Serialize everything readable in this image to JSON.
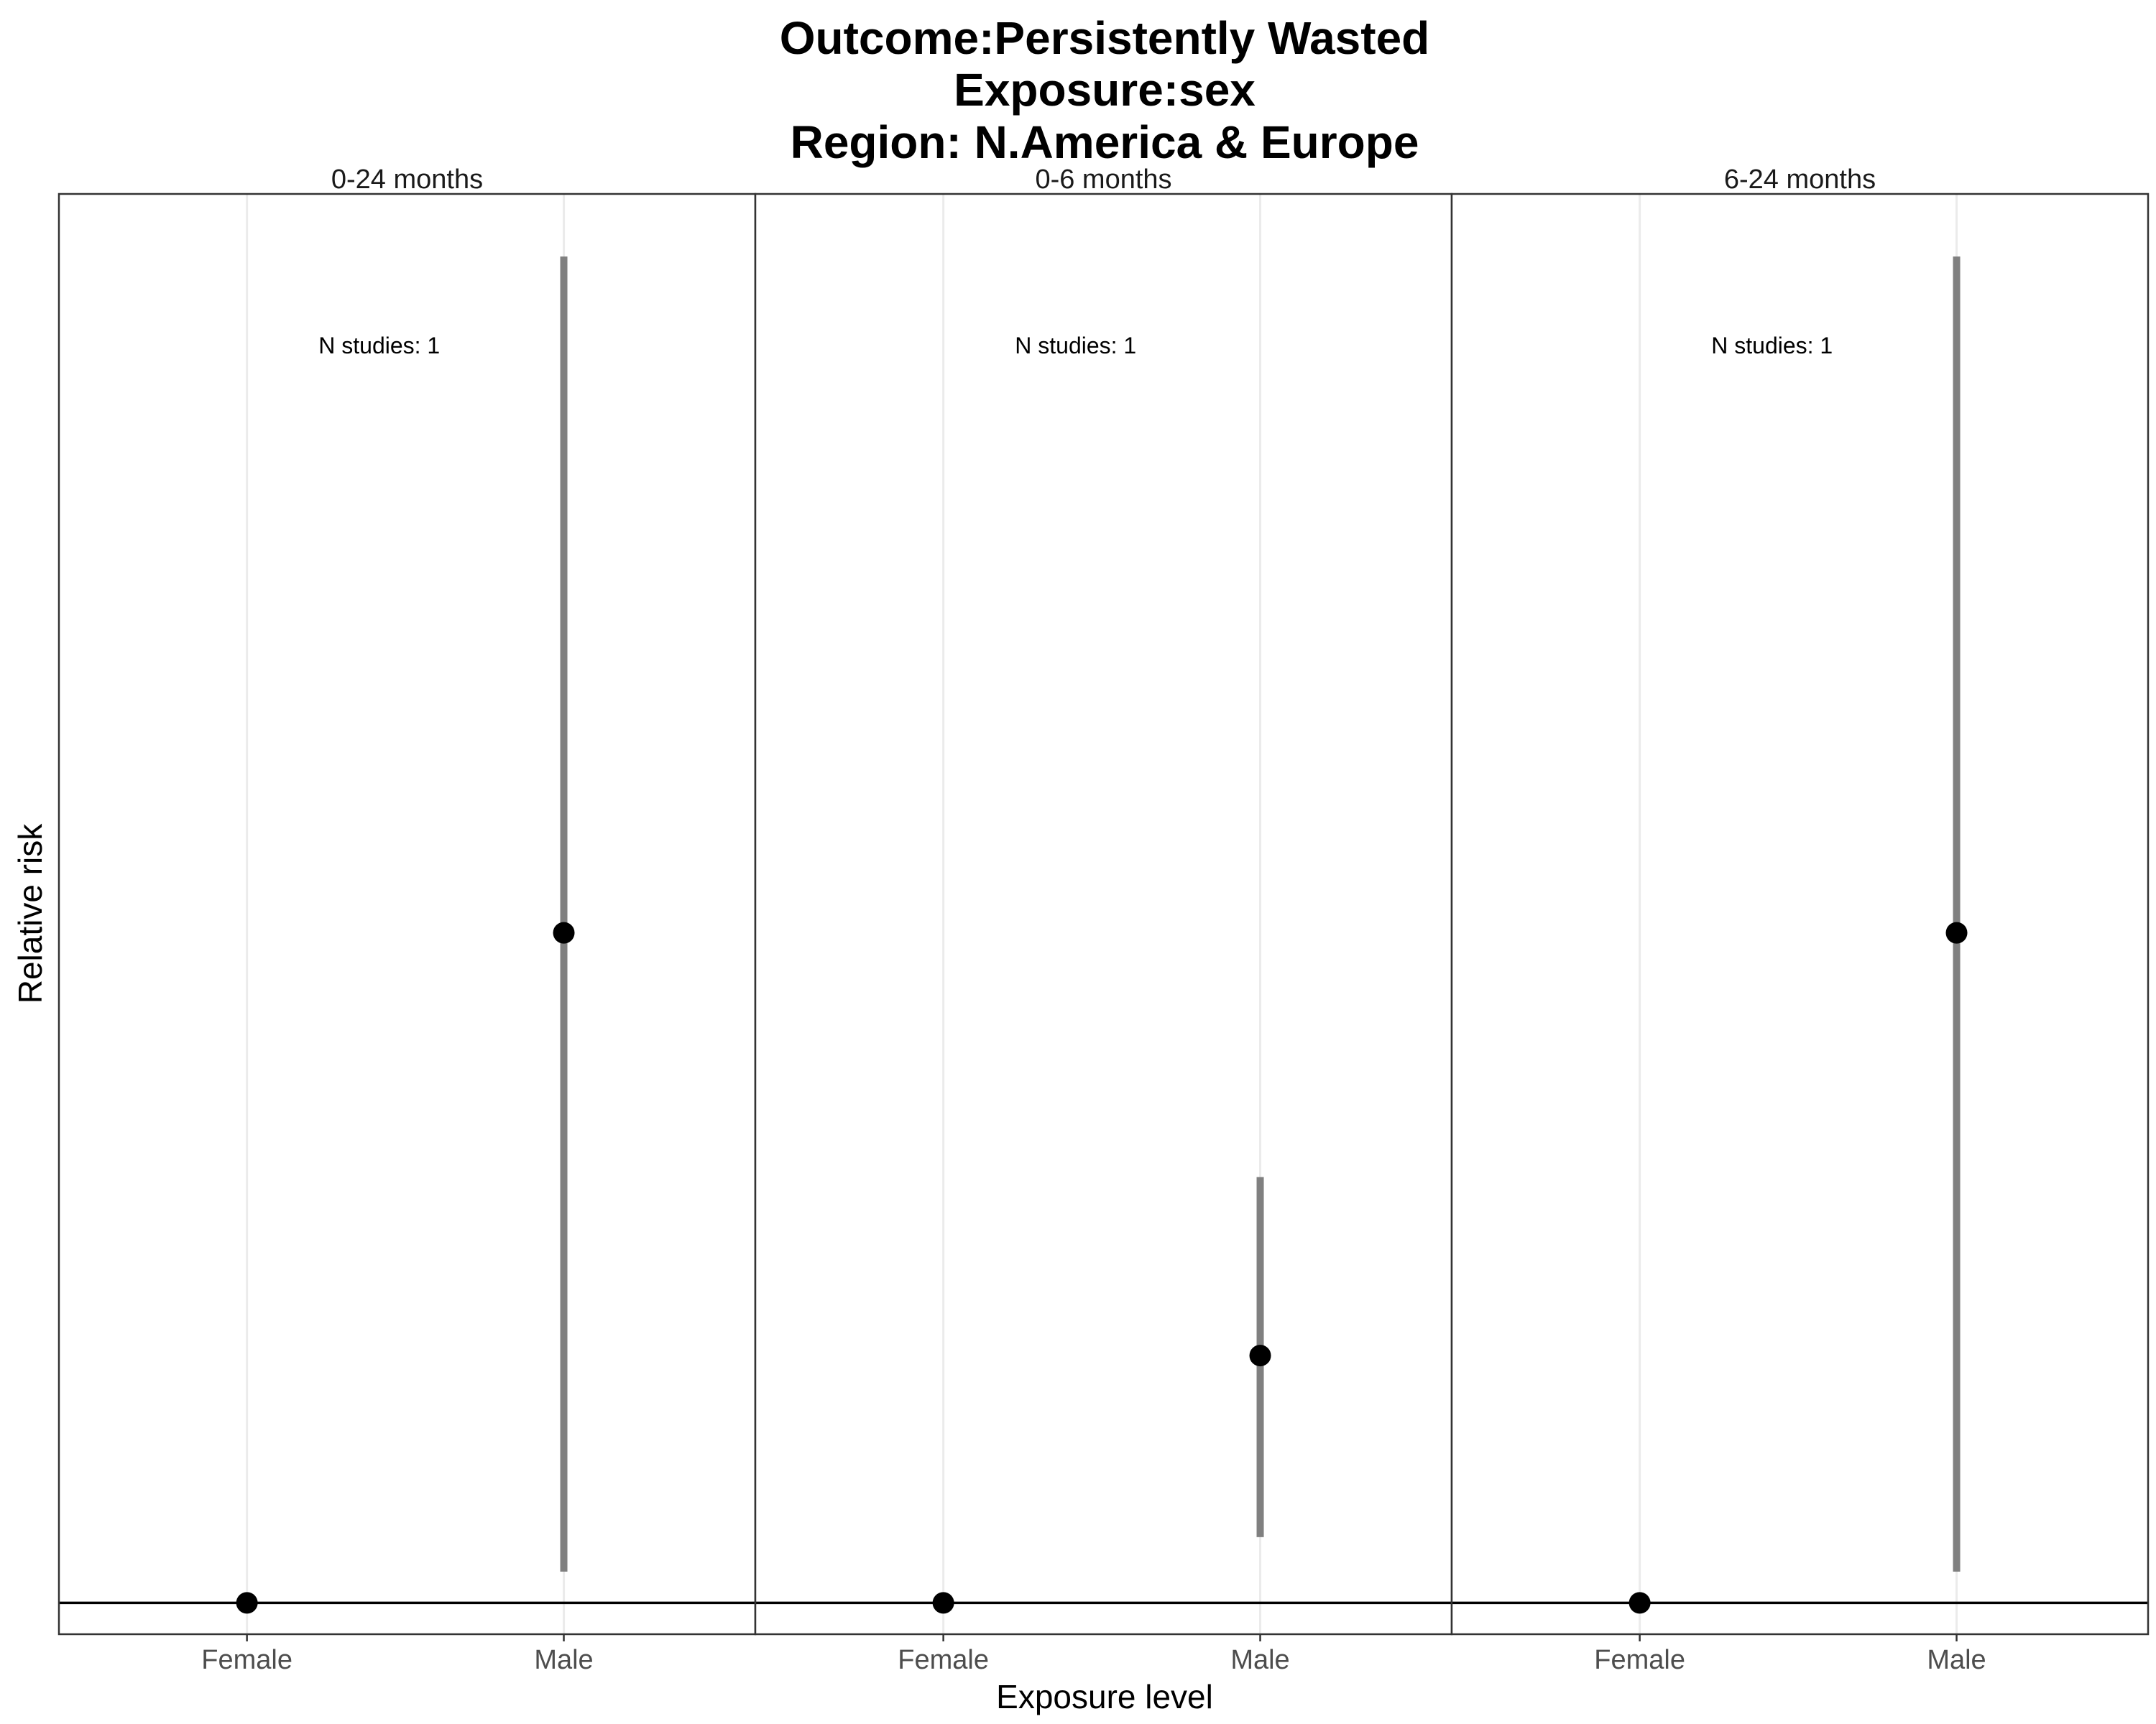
{
  "chart_data": {
    "type": "scatter",
    "title": [
      "Outcome:Persistently Wasted",
      "Exposure:sex",
      "Region: N.America & Europe"
    ],
    "xlabel": "Exposure level",
    "ylabel": "Relative risk",
    "categories": [
      "Female",
      "Male"
    ],
    "ylim": [
      0.9,
      5.5
    ],
    "reference_line": 1,
    "grid": "vertical-major",
    "colors": {
      "point": "#000000",
      "ci": "#808080",
      "grid": "#ebebeb",
      "border": "#333333"
    },
    "panels": [
      {
        "label": "0-24 months",
        "annotation": "N studies: 1",
        "points": [
          {
            "category": "Female",
            "rr": 1.0
          },
          {
            "category": "Male",
            "rr": 3.14,
            "ci_lower": 1.1,
            "ci_upper": 5.3
          }
        ]
      },
      {
        "label": "0-6 months",
        "annotation": "N studies: 1",
        "points": [
          {
            "category": "Female",
            "rr": 1.0
          },
          {
            "category": "Male",
            "rr": 1.79,
            "ci_lower": 1.21,
            "ci_upper": 2.36
          }
        ]
      },
      {
        "label": "6-24 months",
        "annotation": "N studies: 1",
        "points": [
          {
            "category": "Female",
            "rr": 1.0
          },
          {
            "category": "Male",
            "rr": 3.14,
            "ci_lower": 1.1,
            "ci_upper": 5.3
          }
        ]
      }
    ]
  }
}
